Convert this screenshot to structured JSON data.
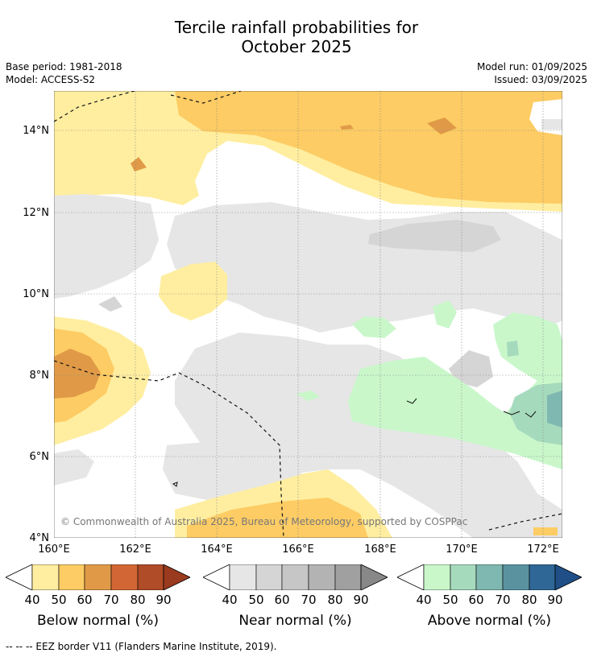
{
  "title_line1": "Tercile rainfall probabilities for",
  "title_line2": "October 2025",
  "meta": {
    "base_period": "Base period: 1981-2018",
    "model": "Model: ACCESS-S2",
    "model_run": "Model run: 01/09/2025",
    "issued": "Issued: 03/09/2025"
  },
  "axes": {
    "lat_labels": [
      "14°N",
      "12°N",
      "10°N",
      "8°N",
      "6°N",
      "4°N"
    ],
    "lon_labels": [
      "160°E",
      "162°E",
      "164°E",
      "166°E",
      "168°E",
      "170°E",
      "172°E"
    ]
  },
  "copyright": "© Commonwealth of Australia 2025, Bureau of Meteorology, supported by COSPPac",
  "colorbars": [
    {
      "title": "Below normal (%)",
      "ticks": [
        "40",
        "50",
        "60",
        "70",
        "80",
        "90"
      ],
      "colors": [
        "#ffeea0",
        "#fdcc64",
        "#e09a47",
        "#d26735",
        "#b04c27",
        "#9a3a1e"
      ]
    },
    {
      "title": "Near normal (%)",
      "ticks": [
        "40",
        "50",
        "60",
        "70",
        "80",
        "90"
      ],
      "colors": [
        "#e6e6e6",
        "#d5d5d5",
        "#c6c6c6",
        "#b3b3b3",
        "#a0a0a0",
        "#888888"
      ]
    },
    {
      "title": "Above normal (%)",
      "ticks": [
        "40",
        "50",
        "60",
        "70",
        "80",
        "90"
      ],
      "colors": [
        "#c9f7ca",
        "#a6dabd",
        "#7fb8b0",
        "#5a92a0",
        "#2f6797",
        "#1f4f86"
      ]
    }
  ],
  "footnote": "-- -- -- EEZ border V11 (Flanders Marine Institute, 2019)."
}
